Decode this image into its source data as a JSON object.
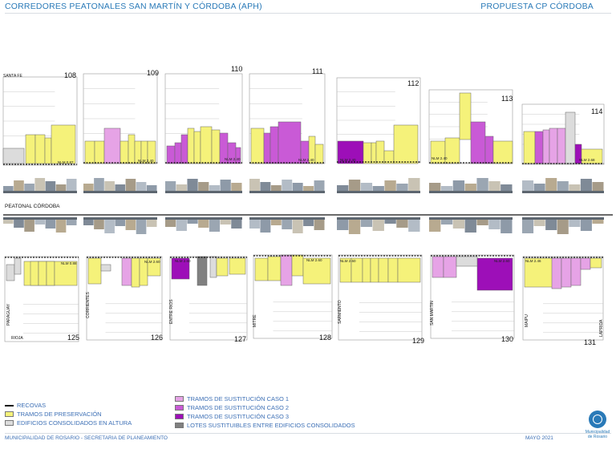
{
  "header": {
    "title": "CORREDORES PEATONALES SAN MARTÍN Y CÓRDOBA (APH)",
    "proposal": "PROPUESTA CP CÓRDOBA"
  },
  "map": {
    "street_label": "PEATONAL CÓRDOBA",
    "top_blocks": [
      {
        "number": "108",
        "label": "NLM 0.87"
      },
      {
        "number": "109",
        "label": "NLM 2.40"
      },
      {
        "number": "110",
        "label": "NLM 2.40"
      },
      {
        "number": "111",
        "label": "NLM 2.40"
      },
      {
        "number": "112",
        "label": "NLM 2.40"
      },
      {
        "number": "113",
        "label": "NLM 2.40"
      },
      {
        "number": "114",
        "label": "NLM 2.68"
      }
    ],
    "bottom_blocks": [
      {
        "number": "125",
        "label": "NLM 0.88"
      },
      {
        "number": "126",
        "label": "NLM 2.60"
      },
      {
        "number": "127",
        "label": "NLM 2.60"
      },
      {
        "number": "128",
        "label": "NLM 2.60"
      },
      {
        "number": "129",
        "label": "NLM 2.60"
      },
      {
        "number": "130",
        "label": "NLM 2.60"
      },
      {
        "number": "131",
        "label": "NLM 2.46"
      }
    ],
    "cross_streets_top": [
      "SANTA FE"
    ],
    "cross_streets_bottom": [
      "PARAGUAY",
      "RIOJA",
      "CORRIENTES",
      "ENTRE RIOS",
      "MITRE",
      "SARMIENTO",
      "SAN MARTIN",
      "MAIPU",
      "LAPRIDA"
    ]
  },
  "legend": {
    "left": [
      {
        "label": "RECOVAS",
        "kind": "dash",
        "color": "#111111"
      },
      {
        "label": "TRAMOS DE PRESERVACIÓN",
        "kind": "swatch",
        "color": "#f5f27a"
      },
      {
        "label": "EDIFICIOS CONSOLIDADOS EN ALTURA",
        "kind": "swatch",
        "color": "#dcdcdc"
      }
    ],
    "right": [
      {
        "label": "TRAMOS DE SUSTITUCIÓN CASO 1",
        "kind": "swatch",
        "color": "#e6a3e6"
      },
      {
        "label": "TRAMOS DE SUSTITUCIÓN CASO 2",
        "kind": "swatch",
        "color": "#c95ad6"
      },
      {
        "label": "TRAMOS DE SUSTITUCIÓN CASO 3",
        "kind": "swatch",
        "color": "#9d0fb8"
      },
      {
        "label": "LOTES SUSTITUIBLES ENTRE EDIFICIOS CONSOLIDADOS",
        "kind": "swatch",
        "color": "#808080"
      }
    ]
  },
  "footer": {
    "left": "MUNICIPALIDAD DE ROSARIO - SECRETARIA DE PLANEAMIENTO",
    "date": "MAYO 2021",
    "logo_line1": "Municipalidad",
    "logo_line2": "de Rosario"
  },
  "colors": {
    "preservation": "#f5f27a",
    "consolidated": "#dcdcdc",
    "case1": "#e6a3e6",
    "case2": "#c95ad6",
    "case3": "#9d0fb8",
    "substitutable": "#808080",
    "accent": "#2a7ab8"
  }
}
